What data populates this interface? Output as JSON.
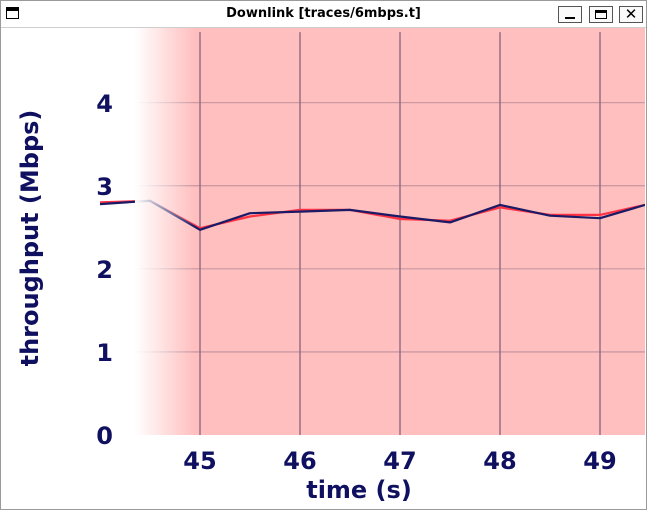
{
  "window": {
    "title": "Downlink [traces/6mbps.t]",
    "minimize_icon": "minimize-icon",
    "maximize_icon": "maximize-icon",
    "close_icon": "close-icon"
  },
  "chart_data": {
    "type": "line",
    "xlabel": "time (s)",
    "ylabel": "throughput (Mbps)",
    "xlim": [
      44.35,
      49.45
    ],
    "ylim": [
      0,
      4.9
    ],
    "xticks": [
      45,
      46,
      47,
      48,
      49
    ],
    "yticks": [
      0,
      1,
      2,
      3,
      4
    ],
    "grid": true,
    "background_color": "#ffbfbf",
    "series": [
      {
        "color": "#ff3344",
        "x": [
          44.0,
          44.5,
          45.0,
          45.5,
          46.0,
          46.5,
          47.0,
          47.5,
          48.0,
          48.5,
          49.0,
          49.45
        ],
        "y": [
          2.8,
          2.82,
          2.49,
          2.63,
          2.71,
          2.71,
          2.6,
          2.58,
          2.74,
          2.65,
          2.65,
          2.77
        ]
      },
      {
        "color": "#1a1a66",
        "x": [
          44.0,
          44.5,
          45.0,
          45.5,
          46.0,
          46.5,
          47.0,
          47.5,
          48.0,
          48.5,
          49.0,
          49.45
        ],
        "y": [
          2.78,
          2.82,
          2.47,
          2.67,
          2.69,
          2.71,
          2.63,
          2.56,
          2.77,
          2.64,
          2.61,
          2.77
        ]
      }
    ]
  }
}
